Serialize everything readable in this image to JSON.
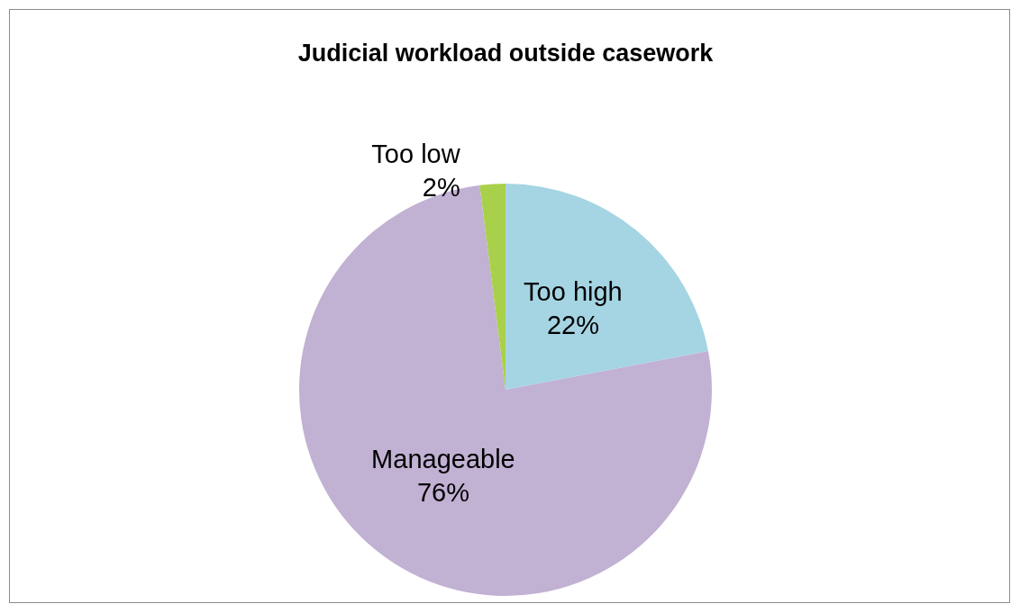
{
  "chart_data": {
    "type": "pie",
    "title": "Judicial workload outside casework",
    "categories": [
      "Too high",
      "Manageable",
      "Too low"
    ],
    "values": [
      22,
      76,
      2
    ],
    "colors": [
      "#a5d5e3",
      "#c1b1d3",
      "#a9d04a"
    ],
    "value_labels": [
      "22%",
      "76%",
      "2%"
    ],
    "legend": false
  }
}
